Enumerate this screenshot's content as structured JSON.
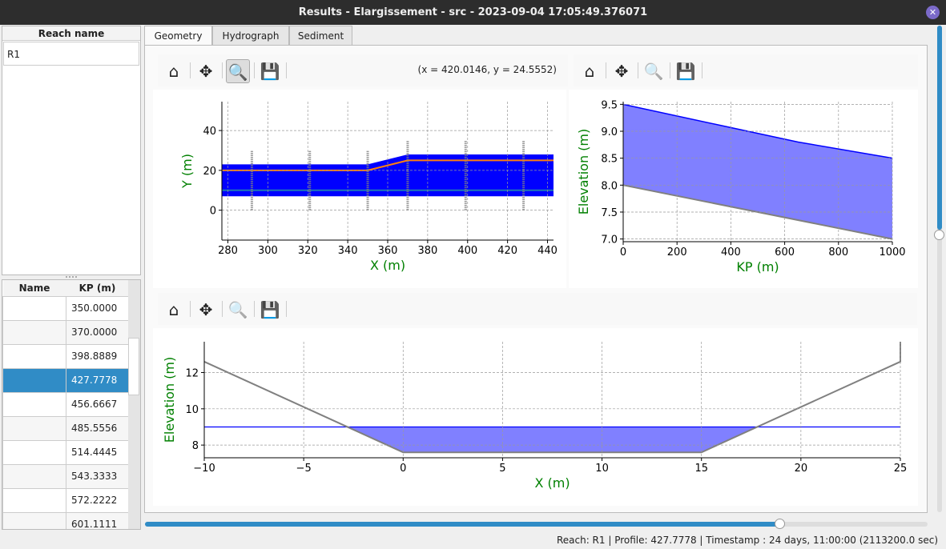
{
  "window": {
    "title": "Results - Elargissement - src - 2023-09-04 17:05:49.376071"
  },
  "reach_list": {
    "header": "Reach name",
    "items": [
      "R1"
    ]
  },
  "profile_table": {
    "headers": [
      "Name",
      "KP (m)"
    ],
    "rows": [
      [
        "",
        "350.0000"
      ],
      [
        "",
        "370.0000"
      ],
      [
        "",
        "398.8889"
      ],
      [
        "",
        "427.7778"
      ],
      [
        "",
        "456.6667"
      ],
      [
        "",
        "485.5556"
      ],
      [
        "",
        "514.4445"
      ],
      [
        "",
        "543.3333"
      ],
      [
        "",
        "572.2222"
      ],
      [
        "",
        "601.1111"
      ]
    ],
    "selected_index": 3
  },
  "tabs": [
    {
      "label": "Geometry",
      "active": true
    },
    {
      "label": "Hydrograph"
    },
    {
      "label": "Sediment"
    }
  ],
  "toolbar": {
    "coords": "(x = 420.0146,   y = 24.5552)",
    "icons": [
      "home-icon",
      "move-icon",
      "zoom-icon",
      "save-icon"
    ]
  },
  "status": "Reach: R1 | Profile: 427.7778 | Timestamp : 24 days, 11:00:00 (2113200.0 sec)",
  "timeline_slider": {
    "value_fraction": 0.82
  },
  "vertical_slider": {
    "value_fraction": 0.42
  },
  "colors": {
    "water": "#0000ff",
    "water_light": "#8080ff",
    "bank": "#808080",
    "axis_label": "#008000",
    "centerline": "#ff7f0e",
    "selection": "#308cc6"
  },
  "chart_data": [
    {
      "type": "area",
      "xlabel": "X (m)",
      "ylabel": "Y (m)",
      "xlim": [
        277,
        443
      ],
      "ylim": [
        -15,
        54.5
      ],
      "xticks": [
        280,
        300,
        320,
        340,
        360,
        380,
        400,
        420,
        440
      ],
      "yticks": [
        0,
        20,
        40
      ],
      "grid": true,
      "channel": {
        "x": [
          277,
          350,
          370,
          443
        ],
        "left_bank": [
          7,
          7,
          7,
          7
        ],
        "right_bank": [
          23,
          23,
          28,
          28
        ]
      },
      "centerline": {
        "x": [
          277,
          350,
          370,
          443
        ],
        "y": [
          20,
          20,
          25,
          25
        ]
      },
      "lowline": {
        "x": [
          277,
          443
        ],
        "y": [
          10,
          10
        ]
      },
      "profiles": [
        {
          "x": 292,
          "y": [
            0,
            30
          ]
        },
        {
          "x": 321,
          "y": [
            0,
            30
          ]
        },
        {
          "x": 350,
          "y": [
            0,
            30
          ]
        },
        {
          "x": 370,
          "y": [
            0,
            35
          ]
        },
        {
          "x": 399,
          "y": [
            0,
            35
          ]
        },
        {
          "x": 428,
          "y": [
            0,
            35
          ]
        }
      ]
    },
    {
      "type": "area",
      "xlabel": "KP (m)",
      "ylabel": "Elevation (m)",
      "xlim": [
        0,
        1000
      ],
      "ylim": [
        6.95,
        9.55
      ],
      "xticks": [
        0,
        200,
        400,
        600,
        800,
        1000
      ],
      "yticks": [
        7.0,
        7.5,
        8.0,
        8.5,
        9.0,
        9.5
      ],
      "grid": true,
      "water": {
        "x": [
          0,
          370,
          650,
          1000
        ],
        "y": [
          9.5,
          9.1,
          8.8,
          8.5
        ]
      },
      "bed": {
        "x": [
          0,
          1000
        ],
        "y": [
          8.0,
          7.0
        ]
      }
    },
    {
      "type": "area",
      "xlabel": "X (m)",
      "ylabel": "Elevation (m)",
      "xlim": [
        -10,
        25
      ],
      "ylim": [
        7.3,
        13.7
      ],
      "xticks": [
        -10,
        -5,
        0,
        5,
        10,
        15,
        20,
        25
      ],
      "xtick_labels": [
        "−10",
        "−5",
        "0",
        "5",
        "10",
        "15",
        "20",
        "25"
      ],
      "yticks": [
        8,
        10,
        12
      ],
      "grid": true,
      "profile": {
        "x": [
          -10,
          0,
          15,
          25,
          25
        ],
        "y": [
          12.6,
          7.6,
          7.6,
          12.6,
          13.7
        ]
      },
      "water_level": 9.0
    }
  ]
}
